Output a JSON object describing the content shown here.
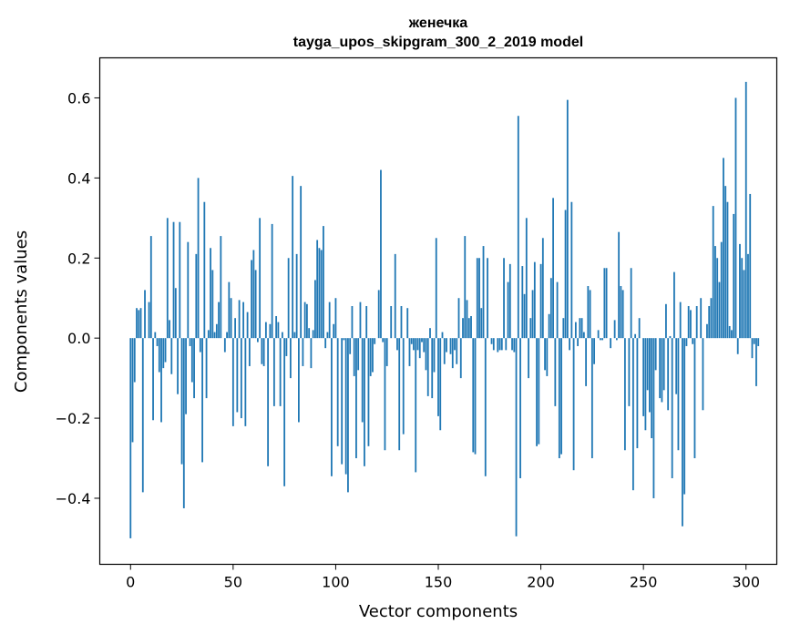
{
  "chart_data": {
    "type": "bar",
    "title": "женечка",
    "subtitle": "tayga_upos_skipgram_300_2_2019 model",
    "xlabel": "Vector components",
    "ylabel": "Components values",
    "xlim": [
      -15,
      315
    ],
    "ylim": [
      -0.565,
      0.7
    ],
    "x_ticks": [
      0,
      50,
      100,
      150,
      200,
      250,
      300
    ],
    "x_tick_labels": [
      "0",
      "50",
      "100",
      "150",
      "200",
      "250",
      "300"
    ],
    "y_ticks": [
      -0.4,
      -0.2,
      0.0,
      0.2,
      0.4,
      0.6
    ],
    "y_tick_labels": [
      "−0.4",
      "−0.2",
      "0.0",
      "0.2",
      "0.4",
      "0.6"
    ],
    "grid": false,
    "bar_color": "#1f77b4",
    "values": [
      -0.5,
      -0.26,
      -0.11,
      0.075,
      0.07,
      0.075,
      -0.385,
      0.12,
      0.0,
      0.09,
      0.255,
      -0.205,
      0.015,
      -0.02,
      -0.085,
      -0.21,
      -0.075,
      -0.06,
      0.3,
      0.045,
      -0.09,
      0.29,
      0.125,
      -0.14,
      0.29,
      -0.315,
      -0.425,
      -0.19,
      0.24,
      -0.02,
      -0.11,
      -0.15,
      0.21,
      0.4,
      -0.035,
      -0.31,
      0.34,
      -0.15,
      0.02,
      0.225,
      0.17,
      0.015,
      0.035,
      0.09,
      0.255,
      0.0,
      -0.035,
      0.015,
      0.14,
      0.1,
      -0.22,
      0.05,
      -0.185,
      0.095,
      -0.2,
      0.09,
      -0.22,
      0.065,
      -0.07,
      0.195,
      0.22,
      0.17,
      -0.01,
      0.3,
      -0.065,
      -0.07,
      0.04,
      -0.32,
      0.035,
      0.285,
      -0.17,
      0.055,
      0.04,
      -0.17,
      0.015,
      -0.37,
      -0.045,
      0.2,
      -0.1,
      0.405,
      0.015,
      0.21,
      -0.21,
      0.38,
      -0.07,
      0.09,
      0.085,
      0.025,
      -0.075,
      0.02,
      0.145,
      0.245,
      0.225,
      0.22,
      0.28,
      -0.025,
      0.015,
      0.09,
      -0.345,
      0.035,
      0.1,
      -0.27,
      0.0,
      -0.315,
      -0.005,
      -0.34,
      -0.385,
      -0.04,
      0.08,
      -0.095,
      -0.3,
      -0.08,
      0.09,
      -0.21,
      -0.32,
      0.08,
      -0.27,
      -0.095,
      -0.085,
      -0.015,
      0.0,
      0.12,
      0.42,
      -0.01,
      -0.28,
      -0.07,
      0.0,
      0.08,
      0.0,
      0.21,
      -0.03,
      -0.28,
      0.08,
      -0.24,
      0.0,
      0.075,
      -0.07,
      -0.015,
      -0.03,
      -0.335,
      -0.03,
      -0.05,
      -0.01,
      -0.035,
      -0.08,
      -0.145,
      0.025,
      -0.15,
      -0.085,
      0.25,
      -0.195,
      -0.23,
      0.015,
      -0.065,
      -0.035,
      0.0,
      -0.04,
      -0.075,
      -0.03,
      -0.065,
      0.1,
      -0.1,
      0.05,
      0.255,
      0.095,
      0.05,
      0.055,
      -0.285,
      -0.29,
      0.2,
      0.2,
      0.075,
      0.23,
      -0.345,
      0.2,
      0.0,
      -0.015,
      -0.03,
      0.0,
      -0.035,
      -0.03,
      -0.03,
      0.2,
      -0.03,
      0.14,
      0.185,
      -0.03,
      -0.035,
      -0.495,
      0.555,
      -0.35,
      0.18,
      0.11,
      0.3,
      -0.1,
      0.05,
      0.12,
      0.19,
      -0.27,
      -0.265,
      0.185,
      0.25,
      -0.08,
      -0.095,
      0.06,
      0.15,
      0.35,
      -0.17,
      0.14,
      -0.3,
      -0.29,
      0.05,
      0.32,
      0.595,
      -0.03,
      0.34,
      -0.33,
      0.04,
      -0.02,
      0.05,
      0.05,
      0.015,
      -0.12,
      0.13,
      0.12,
      -0.3,
      -0.065,
      0.0,
      0.02,
      -0.005,
      -0.005,
      0.175,
      0.175,
      0.0,
      -0.025,
      0.0,
      0.045,
      -0.005,
      0.265,
      0.13,
      0.12,
      -0.28,
      0.0,
      -0.17,
      0.175,
      -0.38,
      0.01,
      -0.275,
      0.05,
      0.0,
      -0.195,
      -0.23,
      -0.13,
      -0.185,
      -0.25,
      -0.4,
      -0.08,
      0.0,
      -0.15,
      -0.16,
      -0.13,
      0.085,
      -0.18,
      0.005,
      -0.35,
      0.165,
      -0.14,
      -0.28,
      0.09,
      -0.47,
      -0.39,
      -0.02,
      0.08,
      0.07,
      -0.015,
      -0.3,
      0.08,
      0.0,
      0.1,
      -0.18,
      0.0,
      0.035,
      0.08,
      0.1,
      0.33,
      0.23,
      0.2,
      0.14,
      0.24,
      0.45,
      0.38,
      0.34,
      0.03,
      0.02,
      0.31,
      0.6,
      -0.04,
      0.235,
      0.2,
      0.17,
      0.64,
      0.21,
      0.36,
      -0.05,
      -0.015,
      -0.12,
      -0.02
    ]
  }
}
